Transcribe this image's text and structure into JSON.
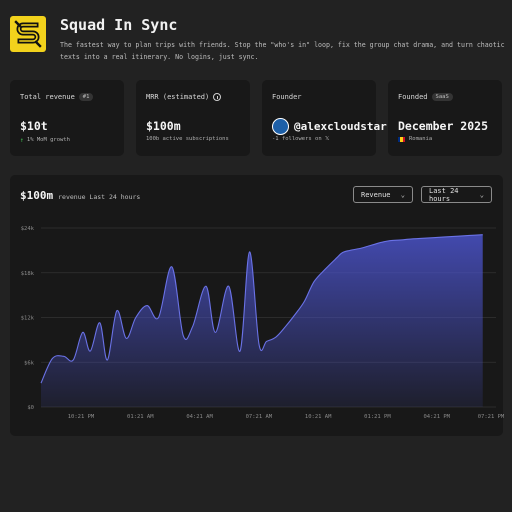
{
  "app": {
    "title": "Squad In Sync",
    "description": "The fastest way to plan trips with friends. Stop the \"who's in\" loop, fix the group chat drama, and turn chaotic texts into a real itinerary. No logins, just sync.",
    "logo_color": "#f2d21c"
  },
  "cards": {
    "revenue": {
      "label": "Total revenue",
      "badge": "#1",
      "value": "$10t",
      "sub": "1% MoM growth",
      "sub_color": "#3fb950"
    },
    "mrr": {
      "label": "MRR (estimated)",
      "value": "$100m",
      "sub": "100b active subscriptions"
    },
    "founder": {
      "label": "Founder",
      "value": "@alexcloudstar",
      "sub": "-1 followers on 𝕏"
    },
    "founded": {
      "label": "Founded",
      "badge": "SaaS",
      "value": "December 2025",
      "sub": "Romania"
    }
  },
  "chart_panel": {
    "value": "$100m",
    "caption": "revenue Last 24 hours",
    "metric_select": "Revenue",
    "range_select": "Last 24 hours"
  },
  "chart_data": {
    "type": "area",
    "title": "",
    "xlabel": "",
    "ylabel": "",
    "ylim": [
      0,
      24
    ],
    "y_ticks": [
      "$0",
      "$6k",
      "$12k",
      "$18k",
      "$24k"
    ],
    "x_ticks": [
      "10:21 PM",
      "01:21 AM",
      "04:21 AM",
      "07:21 AM",
      "10:21 AM",
      "01:21 PM",
      "04:21 PM",
      "07:21 PM"
    ],
    "x": [
      0,
      0.6,
      1.2,
      1.7,
      2.2,
      2.6,
      3.1,
      3.5,
      4.0,
      4.5,
      5.0,
      5.6,
      6.2,
      6.9,
      7.5,
      8.0,
      8.7,
      9.2,
      9.9,
      10.5,
      11.0,
      11.5,
      11.9,
      12.4,
      12.9,
      13.4,
      13.9,
      14.4,
      15.0,
      15.6,
      15.9,
      16.3,
      16.9,
      17.3,
      17.7,
      18.0,
      18.4,
      19.0,
      19.4,
      20.0,
      20.7,
      21.3,
      22.0,
      22.6,
      23.3
    ],
    "values": [
      3.2,
      6.5,
      6.8,
      6.3,
      10.0,
      7.5,
      11.3,
      6.3,
      12.9,
      9.2,
      12.0,
      13.6,
      12.0,
      18.8,
      9.6,
      10.8,
      16.2,
      10.0,
      16.2,
      7.5,
      20.8,
      8.4,
      8.8,
      9.4,
      10.8,
      12.4,
      14.2,
      16.8,
      18.5,
      20.0,
      20.7,
      21.0,
      21.3,
      21.6,
      21.9,
      22.1,
      22.3,
      22.4,
      22.5,
      22.6,
      22.7,
      22.8,
      22.9,
      23.0,
      23.1
    ],
    "series_color": "#4a52c8",
    "grid": true
  }
}
